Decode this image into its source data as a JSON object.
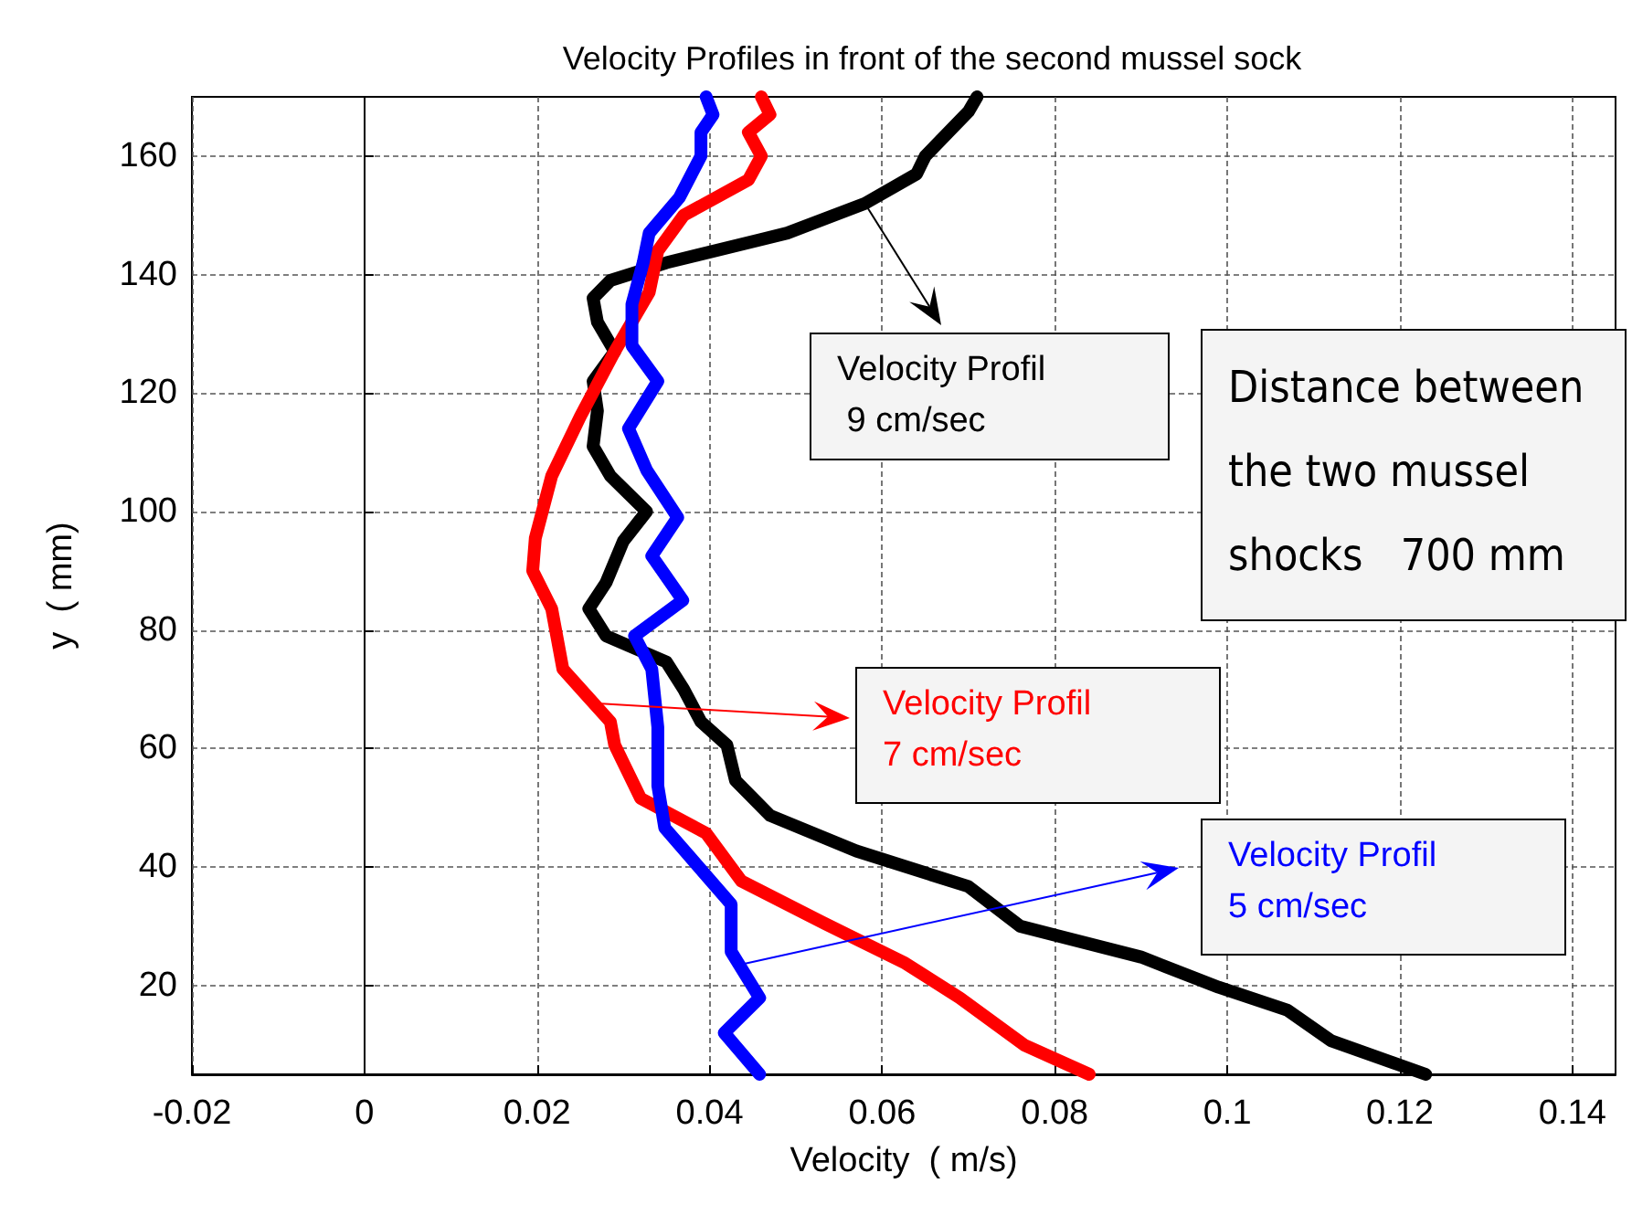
{
  "chart_data": {
    "type": "line",
    "title": "Velocity Profiles in front of the second mussel sock",
    "xlabel": "Velocity  ( m/s)",
    "ylabel": "y  ( mm)",
    "xlim": [
      -0.02,
      0.145
    ],
    "ylim": [
      5,
      170
    ],
    "xticks": [
      -0.02,
      0,
      0.02,
      0.04,
      0.06,
      0.08,
      0.1,
      0.12,
      0.14
    ],
    "yticks": [
      20,
      40,
      60,
      80,
      100,
      120,
      140,
      160
    ],
    "grid": true,
    "line_style": "solid",
    "marker": "none",
    "series": [
      {
        "color": "#000000",
        "x": [
          0.071,
          0.07,
          0.065,
          0.064,
          0.058,
          0.049,
          0.035,
          0.0285,
          0.0265,
          0.027,
          0.029,
          0.0265,
          0.027,
          0.0265,
          0.0285,
          0.0327,
          0.03,
          0.028,
          0.026,
          0.028,
          0.035,
          0.037,
          0.039,
          0.042,
          0.043,
          0.047,
          0.057,
          0.07,
          0.076,
          0.09,
          0.099,
          0.107,
          0.112,
          0.123
        ],
        "values": [
          170,
          167.5,
          160,
          157,
          152,
          147,
          142,
          139,
          136,
          132,
          127,
          122,
          117,
          111,
          106,
          100,
          95,
          88,
          83.6,
          79,
          74.6,
          70,
          64.5,
          60.6,
          54.6,
          48.7,
          42.7,
          36.7,
          30,
          24.8,
          19.7,
          15.8,
          10.7,
          5
        ]
      },
      {
        "color": "#ff0000",
        "x": [
          0.046,
          0.047,
          0.0445,
          0.046,
          0.0445,
          0.037,
          0.034,
          0.033,
          0.029,
          0.025,
          0.0217,
          0.0198,
          0.0195,
          0.0217,
          0.023,
          0.0285,
          0.029,
          0.032,
          0.0396,
          0.0437,
          0.053,
          0.0625,
          0.069,
          0.0765,
          0.084
        ],
        "values": [
          170,
          167,
          164,
          160,
          156,
          150,
          144,
          137,
          127,
          116,
          106,
          95.5,
          90,
          83.6,
          73.4,
          64.5,
          60.6,
          51.6,
          45.7,
          37.6,
          30.7,
          23.9,
          17.9,
          9.9,
          5
        ]
      },
      {
        "color": "#0000ff",
        "x": [
          0.0396,
          0.0404,
          0.039,
          0.039,
          0.0365,
          0.033,
          0.0323,
          0.031,
          0.031,
          0.034,
          0.0306,
          0.0327,
          0.0363,
          0.0333,
          0.0369,
          0.0313,
          0.0333,
          0.034,
          0.034,
          0.0348,
          0.0425,
          0.0425,
          0.0458,
          0.0417,
          0.0458
        ],
        "values": [
          170,
          167,
          164,
          160,
          153,
          147,
          142,
          135,
          128,
          122,
          114,
          107,
          99,
          92.5,
          85,
          79,
          73.4,
          63.6,
          53.7,
          46.6,
          33.7,
          25.7,
          17.9,
          12,
          5
        ]
      }
    ],
    "annotations": [
      {
        "text": "Velocity Profil\n 9 cm/sec",
        "x": 0.058,
        "y": 152
      },
      "Velocity Profil\n7 cm/sec",
      "Velocity Profil\n5 cm/sec",
      "Distance between\nthe two mussel\nshocks   700 mm"
    ]
  }
}
